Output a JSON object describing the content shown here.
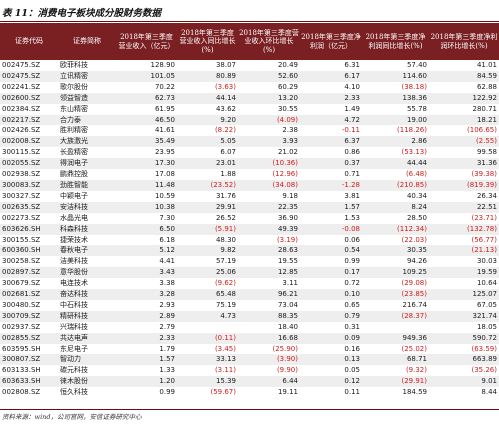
{
  "caption": "表 11：消费电子板块成分股财务数据",
  "columns": [
    "证券代码",
    "证券简称",
    "2018年第三季度营业收入（亿元）",
    "2018年第三季度营业收入同比增长(%)",
    "2018年第三季度营业收入环比增长(%)",
    "2018年第三季度净利润（亿元）",
    "2018年第三季度净利润同比增长(%)",
    "2018年第三季度净利润环比增长(%)"
  ],
  "rows": [
    [
      "002475.SZ",
      "欧菲科技",
      "128.90",
      "38.07",
      "20.49",
      "6.31",
      "57.40",
      "41.01"
    ],
    [
      "002475.SZ",
      "立讯精密",
      "101.05",
      "80.89",
      "52.60",
      "6.17",
      "114.60",
      "84.59"
    ],
    [
      "002241.SZ",
      "歌尔股份",
      "70.22",
      "(3.63)",
      "60.29",
      "4.10",
      "(38.18)",
      "62.88"
    ],
    [
      "002600.SZ",
      "领益智造",
      "62.73",
      "44.14",
      "13.20",
      "2.33",
      "138.36",
      "122.92"
    ],
    [
      "002384.SZ",
      "东山精密",
      "61.95",
      "43.62",
      "30.55",
      "1.49",
      "55.78",
      "280.71"
    ],
    [
      "002217.SZ",
      "合力泰",
      "46.50",
      "9.20",
      "(4.09)",
      "4.72",
      "19.00",
      "18.21"
    ],
    [
      "002426.SZ",
      "胜利精密",
      "41.61",
      "(8.22)",
      "2.38",
      "-0.11",
      "(118.26)",
      "(106.65)"
    ],
    [
      "002008.SZ",
      "大族激光",
      "35.49",
      "5.05",
      "3.93",
      "6.37",
      "2.86",
      "(2.55)"
    ],
    [
      "300115.SZ",
      "长盈精密",
      "23.95",
      "6.07",
      "21.02",
      "0.86",
      "(53.13)",
      "99.58"
    ],
    [
      "002055.SZ",
      "得润电子",
      "17.30",
      "23.01",
      "(10.36)",
      "0.37",
      "44.44",
      "31.36"
    ],
    [
      "002938.SZ",
      "鹏鼎控股",
      "17.08",
      "1.88",
      "(12.96)",
      "0.71",
      "(6.48)",
      "(39.38)"
    ],
    [
      "300083.SZ",
      "劲胜智能",
      "11.48",
      "(23.52)",
      "(34.08)",
      "-1.28",
      "(210.85)",
      "(819.39)"
    ],
    [
      "300327.SZ",
      "中颖电子",
      "10.59",
      "31.76",
      "9.18",
      "3.81",
      "40.34",
      "26.34"
    ],
    [
      "002635.SZ",
      "安洁科技",
      "10.38",
      "29.91",
      "22.35",
      "1.57",
      "8.24",
      "22.51"
    ],
    [
      "002273.SZ",
      "水晶光电",
      "7.30",
      "26.52",
      "36.90",
      "1.53",
      "28.50",
      "(23.71)"
    ],
    [
      "603626.SH",
      "科森科技",
      "6.50",
      "(5.91)",
      "49.39",
      "-0.08",
      "(112.34)",
      "(132.78)"
    ],
    [
      "300155.SZ",
      "捷荣技术",
      "6.18",
      "48.30",
      "(3.19)",
      "0.06",
      "(22.03)",
      "(56.77)"
    ],
    [
      "600360.SH",
      "春秋电子",
      "5.12",
      "9.82",
      "28.63",
      "0.54",
      "30.35",
      "(21.13)"
    ],
    [
      "300258.SZ",
      "洁美科技",
      "4.41",
      "57.19",
      "19.55",
      "0.99",
      "94.26",
      "30.03"
    ],
    [
      "002897.SZ",
      "意华股份",
      "3.43",
      "25.06",
      "12.85",
      "0.17",
      "109.25",
      "19.59"
    ],
    [
      "300679.SZ",
      "电连技术",
      "3.38",
      "(9.62)",
      "3.11",
      "0.72",
      "(29.08)",
      "10.64"
    ],
    [
      "002681.SZ",
      "奋达科技",
      "3.28",
      "65.48",
      "96.21",
      "0.10",
      "(23.85)",
      "125.07"
    ],
    [
      "300480.SZ",
      "中石科技",
      "2.93",
      "75.19",
      "73.04",
      "0.65",
      "216.74",
      "67.05"
    ],
    [
      "300709.SZ",
      "精研科技",
      "2.89",
      "4.73",
      "88.35",
      "0.79",
      "(28.37)",
      "321.74"
    ],
    [
      "002937.SZ",
      "兴瑞科技",
      "2.79",
      "",
      "18.40",
      "0.31",
      "",
      "18.05"
    ],
    [
      "002855.SZ",
      "共达电声",
      "2.33",
      "(0.11)",
      "16.68",
      "0.09",
      "949.36",
      "590.72"
    ],
    [
      "603595.SH",
      "东尼电子",
      "1.79",
      "(3.45)",
      "(25.90)",
      "0.16",
      "(25.02)",
      "(63.59)"
    ],
    [
      "300807.SZ",
      "智动力",
      "1.57",
      "33.13",
      "(3.90)",
      "0.13",
      "68.71",
      "663.89"
    ],
    [
      "603133.SH",
      "碳元科技",
      "1.33",
      "(3.11)",
      "(9.90)",
      "0.05",
      "(9.32)",
      "(35.26)"
    ],
    [
      "603633.SH",
      "徕木股份",
      "1.20",
      "15.39",
      "6.44",
      "0.12",
      "(29.91)",
      "9.01"
    ],
    [
      "002808.SZ",
      "恒久科技",
      "0.99",
      "(59.67)",
      "19.11",
      "0.11",
      "184.59",
      "8.44"
    ]
  ],
  "source": "资料来源：wind，公司官网，安信证券研究中心",
  "colors": {
    "header_bg": "#7a1f22",
    "negative": "#d01c1c",
    "stripe": "#eeeeee"
  }
}
